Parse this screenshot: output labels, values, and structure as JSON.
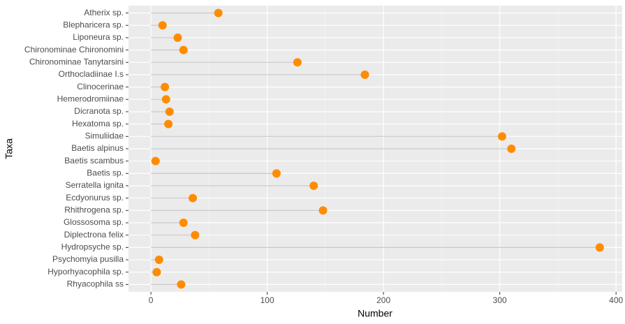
{
  "chart_data": {
    "type": "lollipop",
    "orientation": "horizontal",
    "x_label": "Number",
    "y_label": "Taxa",
    "categories": [
      "Atherix sp.",
      "Blepharicera sp.",
      "Liponeura sp.",
      "Chironominae Chironomini",
      "Chironominae Tanytarsini",
      "Orthocladiinae I.s",
      "Clinocerinae",
      "Hemerodromiinae",
      "Dicranota sp.",
      "Hexatoma sp.",
      "Simuliidae",
      "Baetis alpinus",
      "Baetis scambus",
      "Baetis sp.",
      "Serratella ignita",
      "Ecdyonurus sp.",
      "Rhithrogena sp.",
      "Glossosoma sp.",
      "Diplectrona felix",
      "Hydropsyche sp.",
      "Psychomyia pusilla",
      "Hyporhyacophila sp.",
      "Rhyacophila ss"
    ],
    "values": [
      58,
      10,
      23,
      28,
      126,
      184,
      12,
      13,
      16,
      15,
      302,
      310,
      4,
      108,
      140,
      36,
      148,
      28,
      38,
      386,
      7,
      5,
      26
    ],
    "color": "#ff8c00",
    "stem_color": "#c8c8c8",
    "xlim": [
      -19.3,
      405.3
    ],
    "xticks": [
      0,
      100,
      200,
      300,
      400
    ],
    "xminor": [
      50,
      150,
      250,
      350
    ],
    "grid": true
  }
}
